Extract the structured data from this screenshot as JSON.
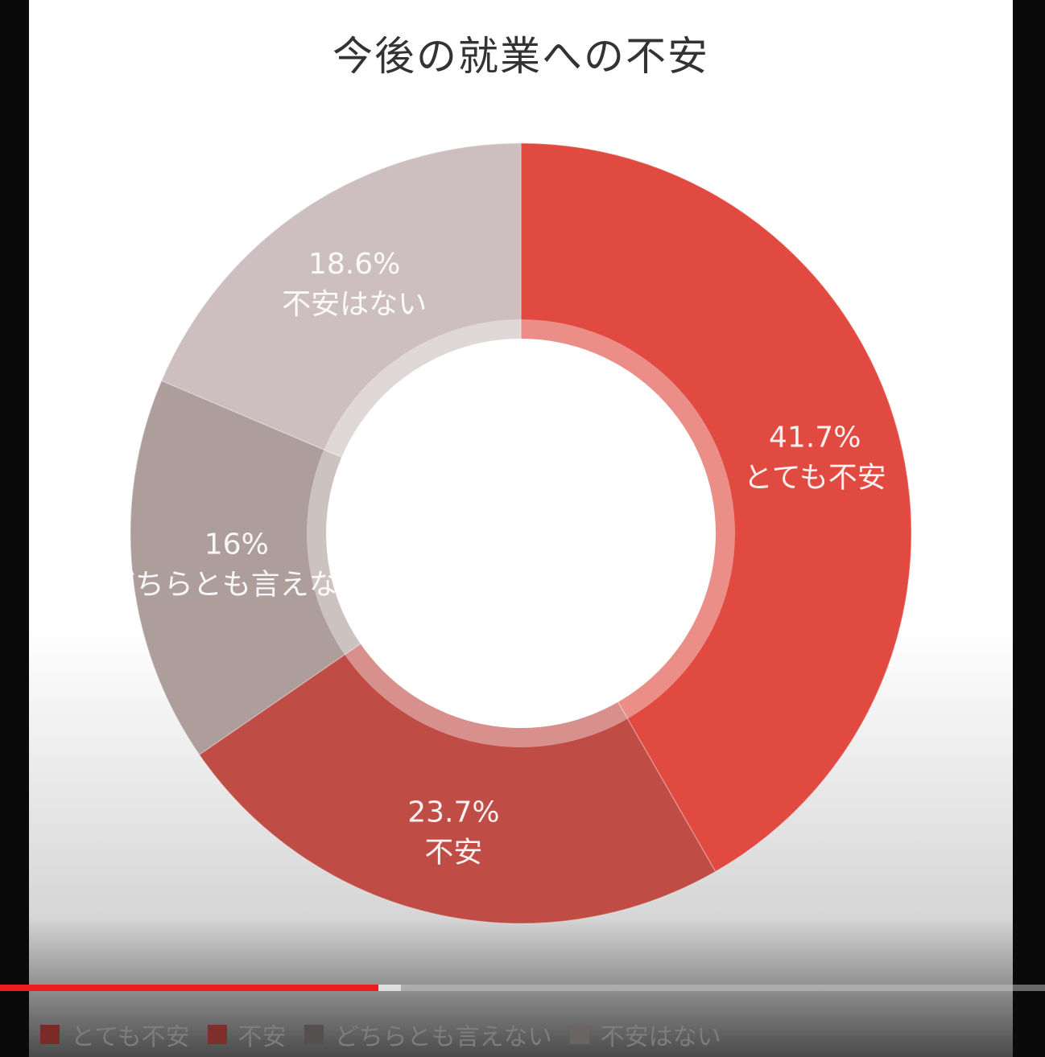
{
  "chart_data": {
    "type": "donut",
    "title": "今後の就業への不安",
    "categories": [
      "とても不安",
      "不安",
      "どちらとも言えない",
      "不安はない"
    ],
    "values": [
      41.7,
      23.7,
      16,
      18.6
    ],
    "value_labels": [
      "41.7%",
      "23.7%",
      "16%",
      "18.6%"
    ],
    "colors": [
      "#e04a40",
      "#bf4c45",
      "#ad9e9c",
      "#cdbfbf"
    ],
    "legend": "bottom-left"
  },
  "player": {
    "progress_played_fraction": 0.362,
    "progress_buffered_fraction": 0.384
  },
  "legend_colors": [
    "#7a2a27",
    "#7e2f2c",
    "#555050",
    "#6a6464"
  ]
}
